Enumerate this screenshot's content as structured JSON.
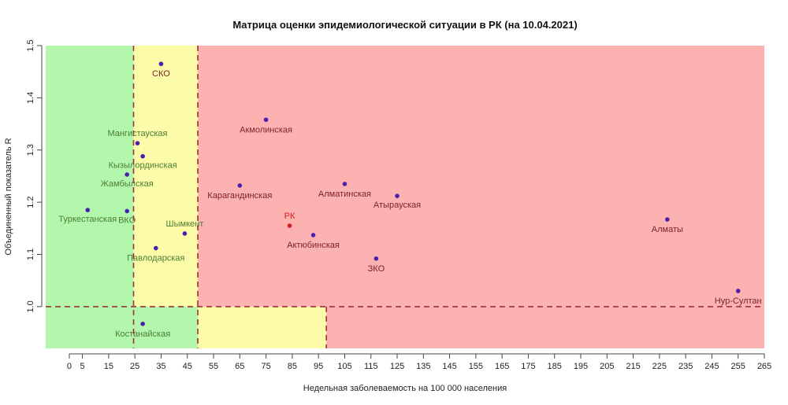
{
  "chart_data": {
    "type": "scatter",
    "title": "Матрица оценки эпидемиологической ситуации в РК (на 10.04.2021)",
    "xlabel": "Недельная заболеваемость на 100 000 населения",
    "ylabel": "Объединенный показатель R",
    "xlim": [
      -9,
      265
    ],
    "ylim": [
      0.92,
      1.5
    ],
    "xticks": [
      0,
      5,
      15,
      25,
      35,
      45,
      55,
      65,
      75,
      85,
      95,
      105,
      115,
      125,
      135,
      145,
      155,
      165,
      175,
      185,
      195,
      205,
      215,
      225,
      235,
      245,
      255,
      265
    ],
    "yticks": [
      1.0,
      1.1,
      1.2,
      1.3,
      1.4,
      1.5
    ],
    "ytick_labels": [
      "1.0",
      "1.1",
      "1.2",
      "1.3",
      "1.4",
      "1.5"
    ],
    "zones": [
      {
        "name": "green",
        "color": "#b3f7ac",
        "x": [
          -9,
          24.5
        ],
        "y": [
          0.92,
          1.5
        ]
      },
      {
        "name": "green-low",
        "color": "#b3f7ac",
        "x": [
          24.5,
          49
        ],
        "y": [
          0.92,
          1.0
        ]
      },
      {
        "name": "yellow",
        "color": "#fbfba8",
        "x": [
          24.5,
          49
        ],
        "y": [
          1.0,
          1.5
        ]
      },
      {
        "name": "yellow-low",
        "color": "#fbfba8",
        "x": [
          49,
          98
        ],
        "y": [
          0.92,
          1.0
        ]
      },
      {
        "name": "red",
        "color": "#fdb2b2",
        "x": [
          49,
          265
        ],
        "y": [
          1.0,
          1.5
        ]
      },
      {
        "name": "red-low",
        "color": "#fdb2b2",
        "x": [
          98,
          265
        ],
        "y": [
          0.92,
          1.0
        ]
      }
    ],
    "threshold_lines": [
      {
        "orientation": "vertical",
        "x": 24.5,
        "y": [
          0.92,
          1.5
        ]
      },
      {
        "orientation": "vertical",
        "x": 49,
        "y": [
          0.92,
          1.5
        ]
      },
      {
        "orientation": "vertical",
        "x": 98,
        "y": [
          0.92,
          1.0
        ]
      },
      {
        "orientation": "horizontal",
        "y": 1.0,
        "x": [
          -9,
          265
        ]
      }
    ],
    "line_color": "#a0303a",
    "point_color": "#4a1fb0",
    "points": [
      {
        "label": "СКО",
        "x": 35,
        "y": 1.465,
        "color": "#4a1fb0",
        "label_color": "#7a1f2a",
        "dx": 0,
        "dy": 16
      },
      {
        "label": "Акмолинская",
        "x": 75,
        "y": 1.358,
        "color": "#4a1fb0",
        "label_color": "#7a1f2a",
        "dx": 0,
        "dy": 16
      },
      {
        "label": "Мангистауская",
        "x": 26,
        "y": 1.313,
        "color": "#4a1fb0",
        "label_color": "#4b7d35",
        "dx": 0,
        "dy": -9
      },
      {
        "label": "Кызылординская",
        "x": 28,
        "y": 1.288,
        "color": "#4a1fb0",
        "label_color": "#4b7d35",
        "dx": 0,
        "dy": 15
      },
      {
        "label": "Жамбылская",
        "x": 22,
        "y": 1.253,
        "color": "#4a1fb0",
        "label_color": "#4b7d35",
        "dx": 0,
        "dy": 15
      },
      {
        "label": "Карагандинская",
        "x": 65,
        "y": 1.232,
        "color": "#4a1fb0",
        "label_color": "#7a1f2a",
        "dx": 0,
        "dy": 16
      },
      {
        "label": "Алматинская",
        "x": 105,
        "y": 1.235,
        "color": "#4a1fb0",
        "label_color": "#7a1f2a",
        "dx": 0,
        "dy": 16
      },
      {
        "label": "Атырауская",
        "x": 125,
        "y": 1.212,
        "color": "#4a1fb0",
        "label_color": "#7a1f2a",
        "dx": 0,
        "dy": 15
      },
      {
        "label": "Туркестанская",
        "x": 7,
        "y": 1.185,
        "color": "#4a1fb0",
        "label_color": "#4b7d35",
        "dx": 0,
        "dy": 15
      },
      {
        "label": "ВКО",
        "x": 22,
        "y": 1.183,
        "color": "#4a1fb0",
        "label_color": "#4b7d35",
        "dx": 0,
        "dy": 15
      },
      {
        "label": "Шымкент",
        "x": 44,
        "y": 1.14,
        "color": "#4a1fb0",
        "label_color": "#4b7d35",
        "dx": 0,
        "dy": -9
      },
      {
        "label": "РК",
        "x": 84,
        "y": 1.155,
        "color": "#d42020",
        "label_color": "#d42020",
        "dx": 0,
        "dy": -9
      },
      {
        "label": "Актюбинская",
        "x": 93,
        "y": 1.137,
        "color": "#4a1fb0",
        "label_color": "#7a1f2a",
        "dx": 0,
        "dy": 16
      },
      {
        "label": "Алматы",
        "x": 228,
        "y": 1.167,
        "color": "#4a1fb0",
        "label_color": "#7a1f2a",
        "dx": 0,
        "dy": 16
      },
      {
        "label": "Павлодарская",
        "x": 33,
        "y": 1.112,
        "color": "#4a1fb0",
        "label_color": "#4b7d35",
        "dx": 0,
        "dy": 16
      },
      {
        "label": "ЗКО",
        "x": 117,
        "y": 1.092,
        "color": "#4a1fb0",
        "label_color": "#7a1f2a",
        "dx": 0,
        "dy": 16
      },
      {
        "label": "Нур-Султан",
        "x": 255,
        "y": 1.03,
        "color": "#4a1fb0",
        "label_color": "#7a1f2a",
        "dx": 0,
        "dy": 16
      },
      {
        "label": "Костанайская",
        "x": 28,
        "y": 0.967,
        "color": "#4a1fb0",
        "label_color": "#4b7d35",
        "dx": 0,
        "dy": 16
      }
    ],
    "grid": false,
    "legend": "none"
  }
}
